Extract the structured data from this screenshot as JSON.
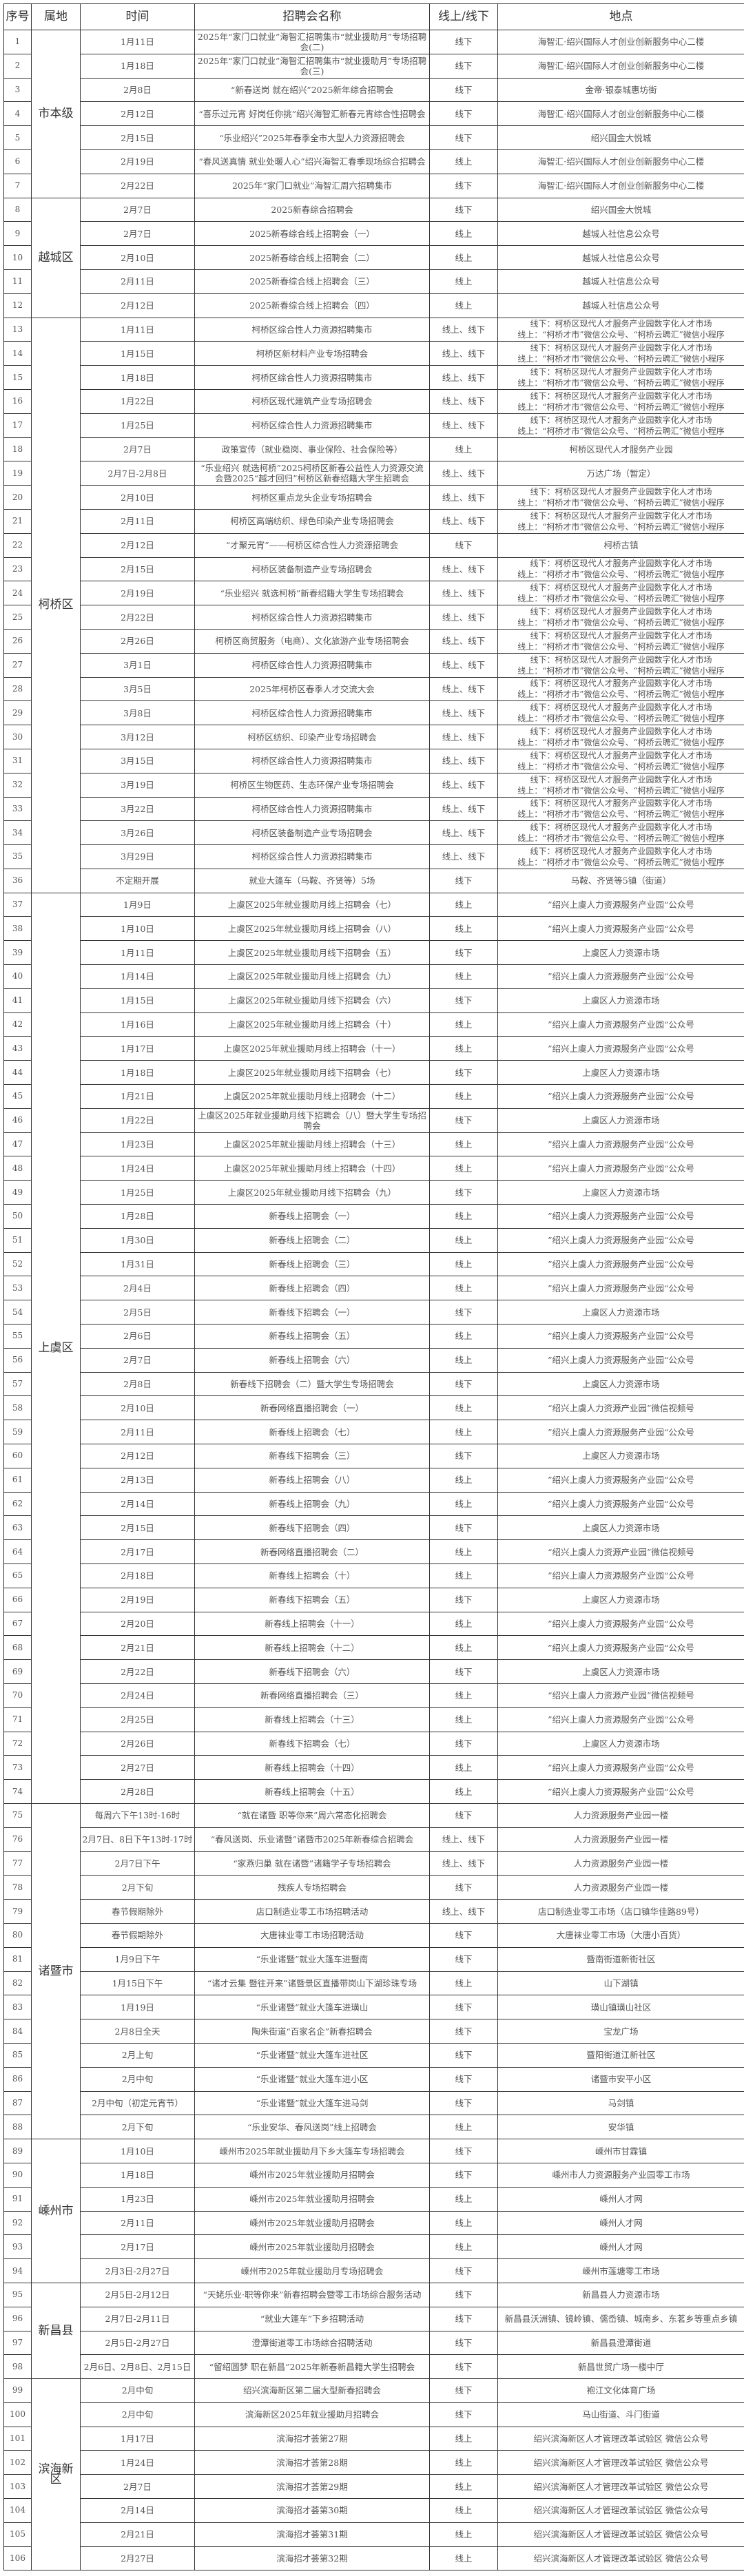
{
  "headers": [
    "序号",
    "属地",
    "时间",
    "招聘会名称",
    "线上/线下",
    "地点"
  ],
  "regions": [
    {
      "name": "市本级",
      "rows": [
        [
          "1",
          "1月11日",
          "2025年“家门口就业”海智汇招聘集市“就业援助月”专场招聘会(二)",
          "线下",
          "海智汇·绍兴国际人才创业创新服务中心二楼"
        ],
        [
          "2",
          "1月18日",
          "2025年“家门口就业”海智汇招聘集市“就业援助月”专场招聘会(三)",
          "线下",
          "海智汇·绍兴国际人才创业创新服务中心二楼"
        ],
        [
          "3",
          "2月8日",
          "“新春送岗 就在绍兴”2025新年综合招聘会",
          "线下",
          "金帝·银泰城惠坊街"
        ],
        [
          "4",
          "2月12日",
          "“喜乐过元宵 好岗任你挑”绍兴海智汇新春元宵综合性招聘会",
          "线下",
          "海智汇·绍兴国际人才创业创新服务中心二楼"
        ],
        [
          "5",
          "2月15日",
          "“乐业绍兴”2025年春季全市大型人力资源招聘会",
          "线下",
          "绍兴国金大悦城"
        ],
        [
          "6",
          "2月19日",
          "“春风送真情 就业处暖人心”绍兴海智汇春季现场综合招聘会",
          "线上",
          "海智汇·绍兴国际人才创业创新服务中心二楼"
        ],
        [
          "7",
          "2月22日",
          "2025年“家门口就业”海智汇周六招聘集市",
          "线下",
          "海智汇·绍兴国际人才创业创新服务中心二楼"
        ]
      ]
    },
    {
      "name": "越城区",
      "rows": [
        [
          "8",
          "2月7日",
          "2025新春综合招聘会",
          "线下",
          "绍兴国金大悦城"
        ],
        [
          "9",
          "2月7日",
          "2025新春综合线上招聘会（一）",
          "线上",
          "越城人社信息公众号"
        ],
        [
          "10",
          "2月10日",
          "2025新春综合线上招聘会（二）",
          "线上",
          "越城人社信息公众号"
        ],
        [
          "11",
          "2月11日",
          "2025新春综合线上招聘会（三）",
          "线上",
          "越城人社信息公众号"
        ],
        [
          "12",
          "2月12日",
          "2025新春综合线上招聘会（四）",
          "线上",
          "越城人社信息公众号"
        ]
      ]
    },
    {
      "name": "柯桥区",
      "rows": [
        [
          "13",
          "1月11日",
          "柯桥区综合性人力资源招聘集市",
          "线上、线下",
          "线下：柯桥区现代人才服务产业园数字化人才市场\n线上：“柯桥才市”微信公众号、“柯桥云聘汇”微信小程序"
        ],
        [
          "14",
          "1月15日",
          "柯桥区新材料产业专场招聘会",
          "线上、线下",
          "线下：柯桥区现代人才服务产业园数字化人才市场\n线上：“柯桥才市”微信公众号、“柯桥云聘汇”微信小程序"
        ],
        [
          "15",
          "1月18日",
          "柯桥区综合性人力资源招聘集市",
          "线上、线下",
          "线下：柯桥区现代人才服务产业园数字化人才市场\n线上：“柯桥才市”微信公众号、“柯桥云聘汇”微信小程序"
        ],
        [
          "16",
          "1月22日",
          "柯桥区现代建筑产业专场招聘会",
          "线上、线下",
          "线下：柯桥区现代人才服务产业园数字化人才市场\n线上：“柯桥才市”微信公众号、“柯桥云聘汇”微信小程序"
        ],
        [
          "17",
          "1月25日",
          "柯桥区综合性人力资源招聘集市",
          "线上、线下",
          "线下：柯桥区现代人才服务产业园数字化人才市场\n线上：“柯桥才市”微信公众号、“柯桥云聘汇”微信小程序"
        ],
        [
          "18",
          "2月7日",
          "政策宣传（就业稳岗、事业保险、社会保险等）",
          "线上",
          "柯桥区现代人才服务产业园"
        ],
        [
          "19",
          "2月7日-2月8日",
          "“乐业绍兴 就选柯桥”2025柯桥区新春公益性人力资源交流会暨2025“越才回归”柯桥区新春绍籍大学生招聘会",
          "线上、线下",
          "万达广场（暂定）"
        ],
        [
          "20",
          "2月10日",
          "柯桥区重点龙头企业专场招聘会",
          "线上、线下",
          "线下：柯桥区现代人才服务产业园数字化人才市场\n线上：“柯桥才市”微信公众号、“柯桥云聘汇”微信小程序"
        ],
        [
          "21",
          "2月11日",
          "柯桥区高端纺织、绿色印染产业专场招聘会",
          "线上、线下",
          "线下：柯桥区现代人才服务产业园数字化人才市场\n线上：“柯桥才市”微信公众号、“柯桥云聘汇”微信小程序"
        ],
        [
          "22",
          "2月12日",
          "“才聚元宵”——柯桥区综合性人力资源招聘会",
          "线下",
          "柯桥古镇"
        ],
        [
          "23",
          "2月15日",
          "柯桥区装备制造产业专场招聘会",
          "线上、线下",
          "线下：柯桥区现代人才服务产业园数字化人才市场\n线上：“柯桥才市”微信公众号、“柯桥云聘汇”微信小程序"
        ],
        [
          "24",
          "2月19日",
          "“乐业绍兴 就选柯桥”新春绍籍大学生专场招聘会",
          "线上、线下",
          "线下：柯桥区现代人才服务产业园数字化人才市场\n线上：“柯桥才市”微信公众号、“柯桥云聘汇”微信小程序"
        ],
        [
          "25",
          "2月22日",
          "柯桥区综合性人力资源招聘集市",
          "线上、线下",
          "线下：柯桥区现代人才服务产业园数字化人才市场\n线上：“柯桥才市”微信公众号、“柯桥云聘汇”微信小程序"
        ],
        [
          "26",
          "2月26日",
          "柯桥区商贸服务（电商）、文化旅游产业专场招聘会",
          "线上、线下",
          "线下：柯桥区现代人才服务产业园数字化人才市场\n线上：“柯桥才市”微信公众号、“柯桥云聘汇”微信小程序"
        ],
        [
          "27",
          "3月1日",
          "柯桥区综合性人力资源招聘集市",
          "线上、线下",
          "线下：柯桥区现代人才服务产业园数字化人才市场\n线上：“柯桥才市”微信公众号、“柯桥云聘汇”微信小程序"
        ],
        [
          "28",
          "3月5日",
          "2025年柯桥区春季人才交流大会",
          "线上、线下",
          "线下：柯桥区现代人才服务产业园数字化人才市场\n线上：“柯桥才市”微信公众号、“柯桥云聘汇”微信小程序"
        ],
        [
          "29",
          "3月8日",
          "柯桥区综合性人力资源招聘集市",
          "线上、线下",
          "线下：柯桥区现代人才服务产业园数字化人才市场\n线上：“柯桥才市”微信公众号、“柯桥云聘汇”微信小程序"
        ],
        [
          "30",
          "3月12日",
          "柯桥区纺织、印染产业专场招聘会",
          "线上、线下",
          "线下：柯桥区现代人才服务产业园数字化人才市场\n线上：“柯桥才市”微信公众号、“柯桥云聘汇”微信小程序"
        ],
        [
          "31",
          "3月15日",
          "柯桥区综合性人力资源招聘集市",
          "线上、线下",
          "线下：柯桥区现代人才服务产业园数字化人才市场\n线上：“柯桥才市”微信公众号、“柯桥云聘汇”微信小程序"
        ],
        [
          "32",
          "3月19日",
          "柯桥区生物医药、生态环保产业专场招聘会",
          "线上、线下",
          "线下：柯桥区现代人才服务产业园数字化人才市场\n线上：“柯桥才市”微信公众号、“柯桥云聘汇”微信小程序"
        ],
        [
          "33",
          "3月22日",
          "柯桥区综合性人力资源招聘集市",
          "线上、线下",
          "线下：柯桥区现代人才服务产业园数字化人才市场\n线上：“柯桥才市”微信公众号、“柯桥云聘汇”微信小程序"
        ],
        [
          "34",
          "3月26日",
          "柯桥区装备制造产业专场招聘会",
          "线上、线下",
          "线下：柯桥区现代人才服务产业园数字化人才市场\n线上：“柯桥才市”微信公众号、“柯桥云聘汇”微信小程序"
        ],
        [
          "35",
          "3月29日",
          "柯桥区综合性人力资源招聘集市",
          "线上、线下",
          "线下：柯桥区现代人才服务产业园数字化人才市场\n线上：“柯桥才市”微信公众号、“柯桥云聘汇”微信小程序"
        ],
        [
          "36",
          "不定期开展",
          "就业大篷车（马鞍、齐贤等）5场",
          "线下",
          "马鞍、齐贤等5镇（街道）"
        ]
      ]
    },
    {
      "name": "上虞区",
      "rows": [
        [
          "37",
          "1月9日",
          "上虞区2025年就业援助月线上招聘会（七）",
          "线上",
          "”绍兴上虞人力资源服务产业园“公众号"
        ],
        [
          "38",
          "1月10日",
          "上虞区2025年就业援助月线上招聘会（八）",
          "线上",
          "”绍兴上虞人力资源服务产业园“公众号"
        ],
        [
          "39",
          "1月11日",
          "上虞区2025年就业援助月线下招聘会（五）",
          "线下",
          "上虞区人力资源市场"
        ],
        [
          "40",
          "1月14日",
          "上虞区2025年就业援助月线上招聘会（九）",
          "线上",
          "”绍兴上虞人力资源服务产业园“公众号"
        ],
        [
          "41",
          "1月15日",
          "上虞区2025年就业援助月线下招聘会（六）",
          "线下",
          "上虞区人力资源市场"
        ],
        [
          "42",
          "1月16日",
          "上虞区2025年就业援助月线上招聘会（十）",
          "线上",
          "”绍兴上虞人力资源服务产业园“公众号"
        ],
        [
          "43",
          "1月17日",
          "上虞区2025年就业援助月线上招聘会（十一）",
          "线上",
          "”绍兴上虞人力资源服务产业园“公众号"
        ],
        [
          "44",
          "1月18日",
          "上虞区2025年就业援助月线下招聘会（七）",
          "线下",
          "上虞区人力资源市场"
        ],
        [
          "45",
          "1月21日",
          "上虞区2025年就业援助月线上招聘会（十二）",
          "线上",
          "”绍兴上虞人力资源服务产业园“公众号"
        ],
        [
          "46",
          "1月22日",
          "上虞区2025年就业援助月线下招聘会（八）暨大学生专场招聘会",
          "线下",
          "上虞区人力资源市场"
        ],
        [
          "47",
          "1月23日",
          "上虞区2025年就业援助月线上招聘会（十三）",
          "线上",
          "”绍兴上虞人力资源服务产业园“公众号"
        ],
        [
          "48",
          "1月24日",
          "上虞区2025年就业援助月线上招聘会（十四）",
          "线上",
          "”绍兴上虞人力资源服务产业园“公众号"
        ],
        [
          "49",
          "1月25日",
          "上虞区2025年就业援助月线下招聘会（九）",
          "线下",
          "上虞区人力资源市场"
        ],
        [
          "50",
          "1月28日",
          "新春线上招聘会（一）",
          "线上",
          "”绍兴上虞人力资源服务产业园“公众号"
        ],
        [
          "51",
          "1月30日",
          "新春线上招聘会（二）",
          "线上",
          "”绍兴上虞人力资源服务产业园“公众号"
        ],
        [
          "52",
          "1月31日",
          "新春线上招聘会（三）",
          "线上",
          "”绍兴上虞人力资源服务产业园“公众号"
        ],
        [
          "53",
          "2月4日",
          "新春线上招聘会（四）",
          "线上",
          "”绍兴上虞人力资源服务产业园“公众号"
        ],
        [
          "54",
          "2月5日",
          "新春线下招聘会（一）",
          "线下",
          "上虞区人力资源市场"
        ],
        [
          "55",
          "2月6日",
          "新春线上招聘会（五）",
          "线上",
          "”绍兴上虞人力资源服务产业园“公众号"
        ],
        [
          "56",
          "2月7日",
          "新春线上招聘会（六）",
          "线上",
          "”绍兴上虞人力资源服务产业园“公众号"
        ],
        [
          "57",
          "2月8日",
          "新春线下招聘会（二）暨大学生专场招聘会",
          "线下",
          "上虞区人力资源市场"
        ],
        [
          "58",
          "2月10日",
          "新春网络直播招聘会（一）",
          "线上",
          "“绍兴上虞人力资源产业园”微信视频号"
        ],
        [
          "59",
          "2月11日",
          "新春线上招聘会（七）",
          "线上",
          "”绍兴上虞人力资源服务产业园“公众号"
        ],
        [
          "60",
          "2月12日",
          "新春线下招聘会（三）",
          "线下",
          "上虞区人力资源市场"
        ],
        [
          "61",
          "2月13日",
          "新春线上招聘会（八）",
          "线上",
          "”绍兴上虞人力资源服务产业园“公众号"
        ],
        [
          "62",
          "2月14日",
          "新春线上招聘会（九）",
          "线上",
          "”绍兴上虞人力资源服务产业园“公众号"
        ],
        [
          "63",
          "2月15日",
          "新春线下招聘会（四）",
          "线下",
          "上虞区人力资源市场"
        ],
        [
          "64",
          "2月17日",
          "新春网络直播招聘会（二）",
          "线上",
          "“绍兴上虞人力资源产业园”微信视频号"
        ],
        [
          "65",
          "2月18日",
          "新春线上招聘会（十）",
          "线上",
          "”绍兴上虞人力资源服务产业园“公众号"
        ],
        [
          "66",
          "2月19日",
          "新春线下招聘会（五）",
          "线下",
          "上虞区人力资源市场"
        ],
        [
          "67",
          "2月20日",
          "新春线上招聘会（十一）",
          "线上",
          "”绍兴上虞人力资源服务产业园“公众号"
        ],
        [
          "68",
          "2月21日",
          "新春线上招聘会（十二）",
          "线上",
          "”绍兴上虞人力资源服务产业园“公众号"
        ],
        [
          "69",
          "2月22日",
          "新春线下招聘会（六）",
          "线下",
          "上虞区人力资源市场"
        ],
        [
          "70",
          "2月24日",
          "新春网络直播招聘会（三）",
          "线上",
          "“绍兴上虞人力资源产业园”微信视频号"
        ],
        [
          "71",
          "2月25日",
          "新春线上招聘会（十三）",
          "线上",
          "”绍兴上虞人力资源服务产业园“公众号"
        ],
        [
          "72",
          "2月26日",
          "新春线下招聘会（七）",
          "线下",
          "上虞区人力资源市场"
        ],
        [
          "73",
          "2月27日",
          "新春线上招聘会（十四）",
          "线上",
          "”绍兴上虞人力资源服务产业园“公众号"
        ],
        [
          "74",
          "2月28日",
          "新春线上招聘会（十五）",
          "线上",
          "”绍兴上虞人力资源服务产业园“公众号"
        ]
      ]
    },
    {
      "name": "诸暨市",
      "rows": [
        [
          "75",
          "每周六下午13时-16时",
          "“就在诸暨 职等你来”周六常态化招聘会",
          "线下",
          "人力资源服务产业园一楼"
        ],
        [
          "76",
          "2月7日、8日下午13时-17时",
          "“春风送岗、乐业诸暨”诸暨市2025年新春综合招聘会",
          "线上、线下",
          "人力资源服务产业园一楼"
        ],
        [
          "77",
          "2月7日下午",
          "“家燕归巢 就在诸暨”诸籍学子专场招聘会",
          "线上、线下",
          "人力资源服务产业园一楼"
        ],
        [
          "78",
          "2月下旬",
          "残疾人专场招聘会",
          "线下",
          "人力资源服务产业园一楼"
        ],
        [
          "79",
          "春节假期除外",
          "店口制造业零工市场招聘活动",
          "线上、线下",
          "店口制造业零工市场（店口镇华佳路89号）"
        ],
        [
          "80",
          "春节假期除外",
          "大唐袜业零工市场招聘活动",
          "线下",
          "大唐袜业零工市场（大唐小百货）"
        ],
        [
          "81",
          "1月9日下午",
          "“乐业诸暨”就业大篷车进暨南",
          "线下",
          "暨南街道新街社区"
        ],
        [
          "82",
          "1月15日下午",
          "“诸才云集 暨往开来”诸暨景区直播带岗山下湖珍珠专场",
          "线上",
          "山下湖镇"
        ],
        [
          "83",
          "1月19日",
          "“乐业诸暨”就业大篷车进璜山",
          "线下",
          "璜山镇璜山社区"
        ],
        [
          "84",
          "2月8日全天",
          "陶朱街道“百家名企”新春招聘会",
          "线下",
          "宝龙广场"
        ],
        [
          "85",
          "2月上旬",
          "“乐业诸暨”就业大篷车进社区",
          "线下",
          "暨阳街道江新社区"
        ],
        [
          "86",
          "2月中旬",
          "“乐业诸暨”就业大篷车进小区",
          "线下",
          "诸暨市安平小区"
        ],
        [
          "87",
          "2月中旬（初定元宵节）",
          "“乐业诸暨”就业大篷车进马剑",
          "线下",
          "马剑镇"
        ],
        [
          "88",
          "2月下旬",
          "“乐业安华、春风送岗”线上招聘会",
          "线上",
          "安华镇"
        ]
      ]
    },
    {
      "name": "嵊州市",
      "rows": [
        [
          "89",
          "1月10日",
          "嵊州市2025年就业援助月下乡大篷车专场招聘会",
          "线下",
          "嵊州市甘霖镇"
        ],
        [
          "90",
          "1月18日",
          "嵊州市2025年就业援助月招聘会",
          "线下",
          "嵊州市人力资源服务产业园零工市场"
        ],
        [
          "91",
          "1月23日",
          "嵊州市2025年就业援助月招聘会",
          "线上",
          "嵊州人才网"
        ],
        [
          "92",
          "2月11日",
          "嵊州市2025年就业援助月招聘会",
          "线上",
          "嵊州人才网"
        ],
        [
          "93",
          "2月17日",
          "嵊州市2025年就业援助月招聘会",
          "线上",
          "嵊州人才网"
        ],
        [
          "94",
          "2月3日-2月27日",
          "嵊州市2025年就业援助月专场招聘会",
          "线下",
          "嵊州市莲塘零工市场"
        ]
      ]
    },
    {
      "name": "新昌县",
      "rows": [
        [
          "95",
          "2月5日-2月12日",
          "“天姥乐业·职等你来”新春招聘会暨零工市场综合服务活动",
          "线下",
          "新昌县人力资源市场"
        ],
        [
          "96",
          "2月7日-2月11日",
          "“就业大篷车”下乡招聘活动",
          "线下",
          "新昌县沃洲镇、镜岭镇、儒岙镇、城南乡、东茗乡等重点乡镇"
        ],
        [
          "97",
          "2月5日-2月27日",
          "澄潭街道零工市场综合招聘活动",
          "线下",
          "新昌县澄潭街道"
        ],
        [
          "98",
          "2月6日、2月8日、2月15日",
          "“留绍圆梦 职在新昌”2025年新春新昌籍大学生招聘会",
          "线下",
          "新昌世贸广场一楼中厅"
        ]
      ]
    },
    {
      "name": "滨海新区",
      "rows": [
        [
          "99",
          "2月中旬",
          "绍兴滨海新区第二届大型新春招聘会",
          "线下",
          "袍江文化体育广场"
        ],
        [
          "100",
          "2月中旬",
          "滨海新区2025年就业援助月招聘会",
          "线下",
          "马山街道、斗门街道"
        ],
        [
          "101",
          "1月17日",
          "滨海招才荟第27期",
          "线上",
          "绍兴滨海新区人才管理改革试验区 微信公众号"
        ],
        [
          "102",
          "1月24日",
          "滨海招才荟第28期",
          "线上",
          "绍兴滨海新区人才管理改革试验区 微信公众号"
        ],
        [
          "103",
          "2月7日",
          "滨海招才荟第29期",
          "线上",
          "绍兴滨海新区人才管理改革试验区 微信公众号"
        ],
        [
          "104",
          "2月14日",
          "滨海招才荟第30期",
          "线上",
          "绍兴滨海新区人才管理改革试验区 微信公众号"
        ],
        [
          "105",
          "2月21日",
          "滨海招才荟第31期",
          "线上",
          "绍兴滨海新区人才管理改革试验区 微信公众号"
        ],
        [
          "106",
          "2月27日",
          "滨海招才荟第32期",
          "线上",
          "绍兴滨海新区人才管理改革试验区 微信公众号"
        ]
      ]
    }
  ]
}
